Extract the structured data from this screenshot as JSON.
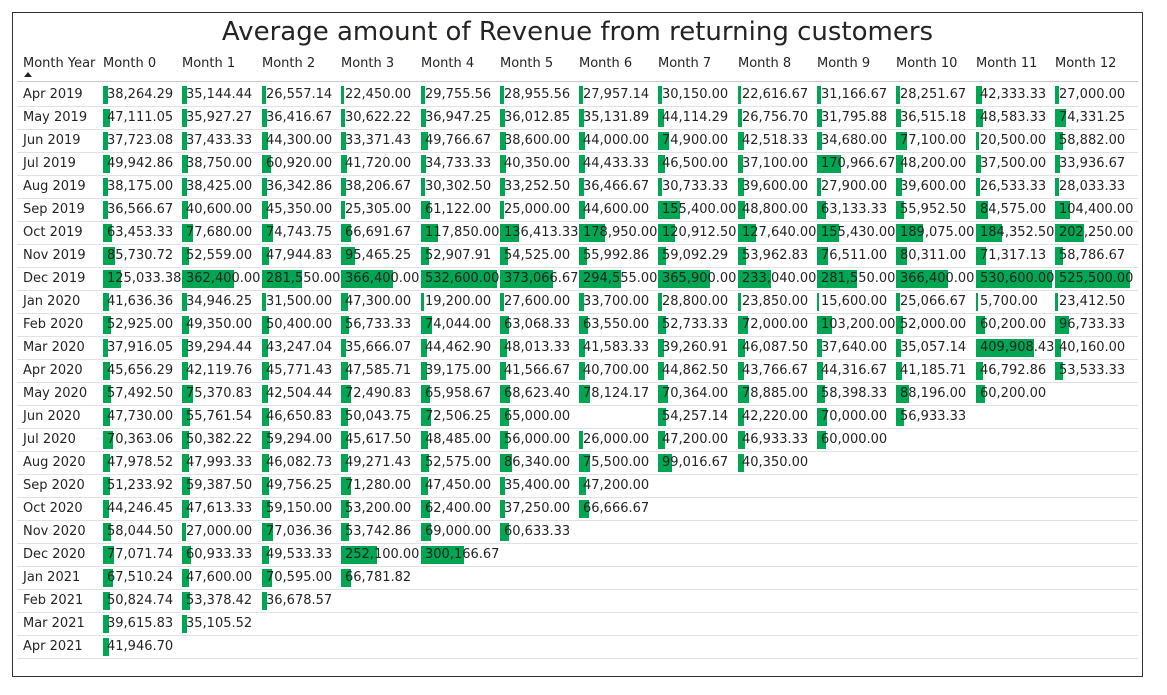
{
  "chart_data": {
    "type": "table",
    "title": "Average amount of Revenue from returning customers",
    "row_header": "Month Year",
    "columns": [
      "Month 0",
      "Month 1",
      "Month 2",
      "Month 3",
      "Month 4",
      "Month 5",
      "Month 6",
      "Month 7",
      "Month 8",
      "Month 9",
      "Month 10",
      "Month 11",
      "Month 12"
    ],
    "bar_color": "#00a651",
    "rows": [
      {
        "label": "Apr 2019",
        "values": [
          "38,264.29",
          "35,144.44",
          "26,557.14",
          "22,450.00",
          "29,755.56",
          "28,955.56",
          "27,957.14",
          "30,150.00",
          "22,616.67",
          "31,166.67",
          "28,251.67",
          "42,333.33",
          "27,000.00"
        ]
      },
      {
        "label": "May 2019",
        "values": [
          "47,111.05",
          "35,927.27",
          "36,416.67",
          "30,622.22",
          "36,947.25",
          "36,012.85",
          "35,131.89",
          "44,114.29",
          "26,756.70",
          "31,795.88",
          "36,515.18",
          "48,583.33",
          "74,331.25"
        ]
      },
      {
        "label": "Jun 2019",
        "values": [
          "37,723.08",
          "37,433.33",
          "44,300.00",
          "33,371.43",
          "49,766.67",
          "38,600.00",
          "44,000.00",
          "74,900.00",
          "42,518.33",
          "34,680.00",
          "77,100.00",
          "20,500.00",
          "58,882.00"
        ]
      },
      {
        "label": "Jul 2019",
        "values": [
          "49,942.86",
          "38,750.00",
          "60,920.00",
          "41,720.00",
          "34,733.33",
          "40,350.00",
          "44,433.33",
          "46,500.00",
          "37,100.00",
          "170,966.67",
          "48,200.00",
          "37,500.00",
          "33,936.67"
        ]
      },
      {
        "label": "Aug 2019",
        "values": [
          "38,175.00",
          "38,425.00",
          "36,342.86",
          "38,206.67",
          "30,302.50",
          "33,252.50",
          "36,466.67",
          "30,733.33",
          "39,600.00",
          "27,900.00",
          "39,600.00",
          "26,533.33",
          "28,033.33"
        ]
      },
      {
        "label": "Sep 2019",
        "values": [
          "36,566.67",
          "40,600.00",
          "45,350.00",
          "25,305.00",
          "61,122.00",
          "25,000.00",
          "44,600.00",
          "155,400.00",
          "48,800.00",
          "63,133.33",
          "55,952.50",
          "84,575.00",
          "104,400.00"
        ]
      },
      {
        "label": "Oct 2019",
        "values": [
          "63,453.33",
          "77,680.00",
          "74,743.75",
          "66,691.67",
          "117,850.00",
          "136,413.33",
          "178,950.00",
          "120,912.50",
          "127,640.00",
          "155,430.00",
          "189,075.00",
          "184,352.50",
          "202,250.00"
        ]
      },
      {
        "label": "Nov 2019",
        "values": [
          "85,730.72",
          "52,559.00",
          "47,944.83",
          "95,465.25",
          "52,907.91",
          "54,525.00",
          "55,992.86",
          "59,092.29",
          "53,962.83",
          "76,511.00",
          "80,311.00",
          "71,317.13",
          "58,786.67"
        ]
      },
      {
        "label": "Dec 2019",
        "values": [
          "125,033.38",
          "362,400.00",
          "281,550.00",
          "366,400.00",
          "532,600.00",
          "373,066.67",
          "294,555.00",
          "365,900.00",
          "233,040.00",
          "281,550.00",
          "366,400.00",
          "530,600.00",
          "525,500.00"
        ]
      },
      {
        "label": "Jan 2020",
        "values": [
          "41,636.36",
          "34,946.25",
          "31,500.00",
          "47,300.00",
          "19,200.00",
          "27,600.00",
          "33,700.00",
          "28,800.00",
          "23,850.00",
          "15,600.00",
          "25,066.67",
          "5,700.00",
          "23,412.50"
        ]
      },
      {
        "label": "Feb 2020",
        "values": [
          "52,925.00",
          "49,350.00",
          "50,400.00",
          "56,733.33",
          "74,044.00",
          "63,068.33",
          "63,550.00",
          "52,733.33",
          "72,000.00",
          "103,200.00",
          "52,000.00",
          "60,200.00",
          "96,733.33"
        ]
      },
      {
        "label": "Mar 2020",
        "values": [
          "37,916.05",
          "39,294.44",
          "43,247.04",
          "35,666.07",
          "44,462.90",
          "48,013.33",
          "41,583.33",
          "39,260.91",
          "46,087.50",
          "37,640.00",
          "35,057.14",
          "409,908.43",
          "40,160.00"
        ]
      },
      {
        "label": "Apr 2020",
        "values": [
          "45,656.29",
          "42,119.76",
          "45,771.43",
          "47,585.71",
          "39,175.00",
          "41,566.67",
          "40,700.00",
          "44,862.50",
          "43,766.67",
          "44,316.67",
          "41,185.71",
          "46,792.86",
          "53,533.33"
        ]
      },
      {
        "label": "May 2020",
        "values": [
          "57,492.50",
          "75,370.83",
          "42,504.44",
          "72,490.83",
          "65,958.67",
          "68,623.40",
          "78,124.17",
          "70,364.00",
          "78,885.00",
          "58,398.33",
          "88,196.00",
          "60,200.00",
          ""
        ]
      },
      {
        "label": "Jun 2020",
        "values": [
          "47,730.00",
          "55,761.54",
          "46,650.83",
          "50,043.75",
          "72,506.25",
          "65,000.00",
          "",
          "54,257.14",
          "42,220.00",
          "70,000.00",
          "56,933.33",
          "",
          ""
        ]
      },
      {
        "label": "Jul 2020",
        "values": [
          "70,363.06",
          "50,382.22",
          "59,294.00",
          "45,617.50",
          "48,485.00",
          "56,000.00",
          "26,000.00",
          "47,200.00",
          "46,933.33",
          "60,000.00",
          "",
          "",
          ""
        ]
      },
      {
        "label": "Aug 2020",
        "values": [
          "47,978.52",
          "47,993.33",
          "46,082.73",
          "49,271.43",
          "52,575.00",
          "86,340.00",
          "75,500.00",
          "99,016.67",
          "40,350.00",
          "",
          "",
          "",
          ""
        ]
      },
      {
        "label": "Sep 2020",
        "values": [
          "51,233.92",
          "59,387.50",
          "49,756.25",
          "71,280.00",
          "47,450.00",
          "35,400.00",
          "47,200.00",
          "",
          "",
          "",
          "",
          "",
          ""
        ]
      },
      {
        "label": "Oct 2020",
        "values": [
          "44,246.45",
          "47,613.33",
          "59,150.00",
          "53,200.00",
          "62,400.00",
          "37,250.00",
          "66,666.67",
          "",
          "",
          "",
          "",
          "",
          ""
        ]
      },
      {
        "label": "Nov 2020",
        "values": [
          "58,044.50",
          "27,000.00",
          "77,036.36",
          "53,742.86",
          "69,000.00",
          "60,633.33",
          "",
          "",
          "",
          "",
          "",
          "",
          ""
        ]
      },
      {
        "label": "Dec 2020",
        "values": [
          "77,071.74",
          "60,933.33",
          "49,533.33",
          "252,100.00",
          "300,166.67",
          "",
          "",
          "",
          "",
          "",
          "",
          "",
          ""
        ]
      },
      {
        "label": "Jan 2021",
        "values": [
          "67,510.24",
          "47,600.00",
          "70,595.00",
          "66,781.82",
          "",
          "",
          "",
          "",
          "",
          "",
          "",
          "",
          ""
        ]
      },
      {
        "label": "Feb 2021",
        "values": [
          "50,824.74",
          "53,378.42",
          "36,678.57",
          "",
          "",
          "",
          "",
          "",
          "",
          "",
          "",
          "",
          ""
        ]
      },
      {
        "label": "Mar 2021",
        "values": [
          "39,615.83",
          "35,105.52",
          "",
          "",
          "",
          "",
          "",
          "",
          "",
          "",
          "",
          "",
          ""
        ]
      },
      {
        "label": "Apr 2021",
        "values": [
          "41,946.70",
          "",
          "",
          "",
          "",
          "",
          "",
          "",
          "",
          "",
          "",
          "",
          ""
        ]
      }
    ]
  }
}
